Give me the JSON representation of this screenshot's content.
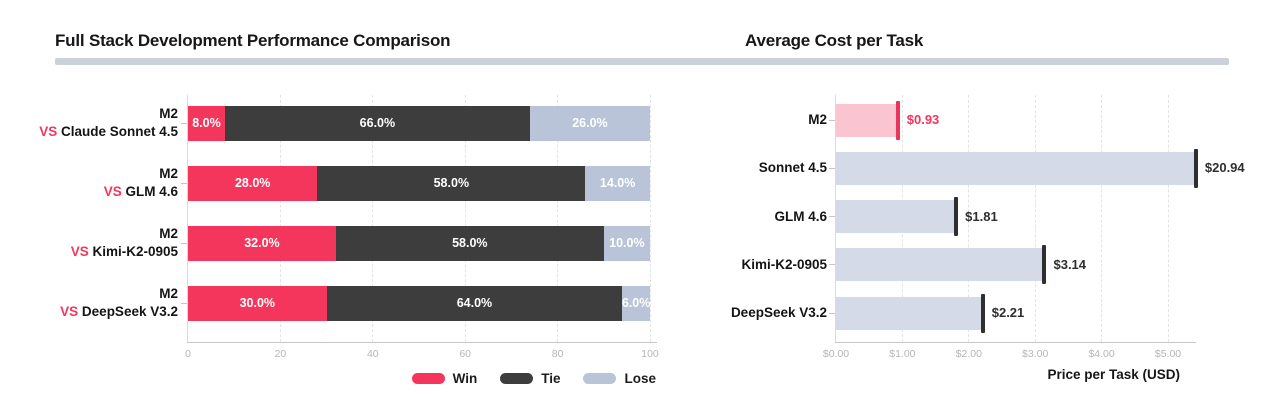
{
  "colors": {
    "divider": "#cbd1db",
    "win_pink": "#F5365C",
    "tie_dark": "#3D3D3D",
    "lose_gray": "#B9C4D8",
    "cost_bar_gray": "#D4DAE7",
    "cost_bar_pink": "#FAC4D1",
    "cap_dark": "#2F2F2F",
    "cap_pink": "#E9345C",
    "text_dark": "#2F2F2F"
  },
  "chart_data": [
    {
      "type": "bar",
      "orientation": "horizontal",
      "stacked": true,
      "title": "Full Stack Development Performance Comparison",
      "categories": [
        {
          "line1": "M2",
          "prefix": "VS",
          "name": "Claude Sonnet 4.5"
        },
        {
          "line1": "M2",
          "prefix": "VS",
          "name": "GLM 4.6"
        },
        {
          "line1": "M2",
          "prefix": "VS",
          "name": "Kimi-K2-0905"
        },
        {
          "line1": "M2",
          "prefix": "VS",
          "name": "DeepSeek V3.2"
        }
      ],
      "series": [
        {
          "name": "Win",
          "color": "#F5365C",
          "values": [
            8.0,
            28.0,
            32.0,
            30.0
          ],
          "labels": [
            "8.0%",
            "28.0%",
            "32.0%",
            "30.0%"
          ]
        },
        {
          "name": "Tie",
          "color": "#3D3D3D",
          "values": [
            66.0,
            58.0,
            58.0,
            64.0
          ],
          "labels": [
            "66.0%",
            "58.0%",
            "58.0%",
            "64.0%"
          ]
        },
        {
          "name": "Lose",
          "color": "#B9C4D8",
          "values": [
            26.0,
            14.0,
            10.0,
            6.0
          ],
          "labels": [
            "26.0%",
            "14.0%",
            "10.0%",
            "6.0%"
          ]
        }
      ],
      "xlim": [
        0,
        100
      ],
      "xticks": [
        0,
        20,
        40,
        60,
        80,
        100
      ],
      "xtick_labels": [
        "0",
        "20",
        "40",
        "60",
        "80",
        "100"
      ],
      "grid": "dashed-vertical",
      "legend_position": "bottom-right"
    },
    {
      "type": "bar",
      "orientation": "horizontal",
      "title": "Average Cost per Task",
      "categories": [
        "M2",
        "Sonnet 4.5",
        "GLM 4.6",
        "Kimi-K2-0905",
        "DeepSeek V3.2"
      ],
      "values": [
        0.93,
        20.94,
        1.81,
        3.14,
        2.21
      ],
      "value_labels": [
        "$0.93",
        "$20.94",
        "$1.81",
        "$3.14",
        "$2.21"
      ],
      "bar_colors": [
        "#FAC4D1",
        "#D4DAE7",
        "#D4DAE7",
        "#D4DAE7",
        "#D4DAE7"
      ],
      "cap_colors": [
        "#E9345C",
        "#2F2F2F",
        "#2F2F2F",
        "#2F2F2F",
        "#2F2F2F"
      ],
      "value_label_colors": [
        "#F5365C",
        "#2F2F2F",
        "#2F2F2F",
        "#2F2F2F",
        "#2F2F2F"
      ],
      "highlight_index": 0,
      "xlabel": "Price per Task (USD)",
      "xlim": [
        0,
        5.42
      ],
      "xticks": [
        0,
        1,
        2,
        3,
        4,
        5
      ],
      "xtick_labels": [
        "$0.00",
        "$1.00",
        "$2.00",
        "$3.00",
        "$4.00",
        "$5.00"
      ],
      "grid": "dashed-vertical"
    }
  ]
}
